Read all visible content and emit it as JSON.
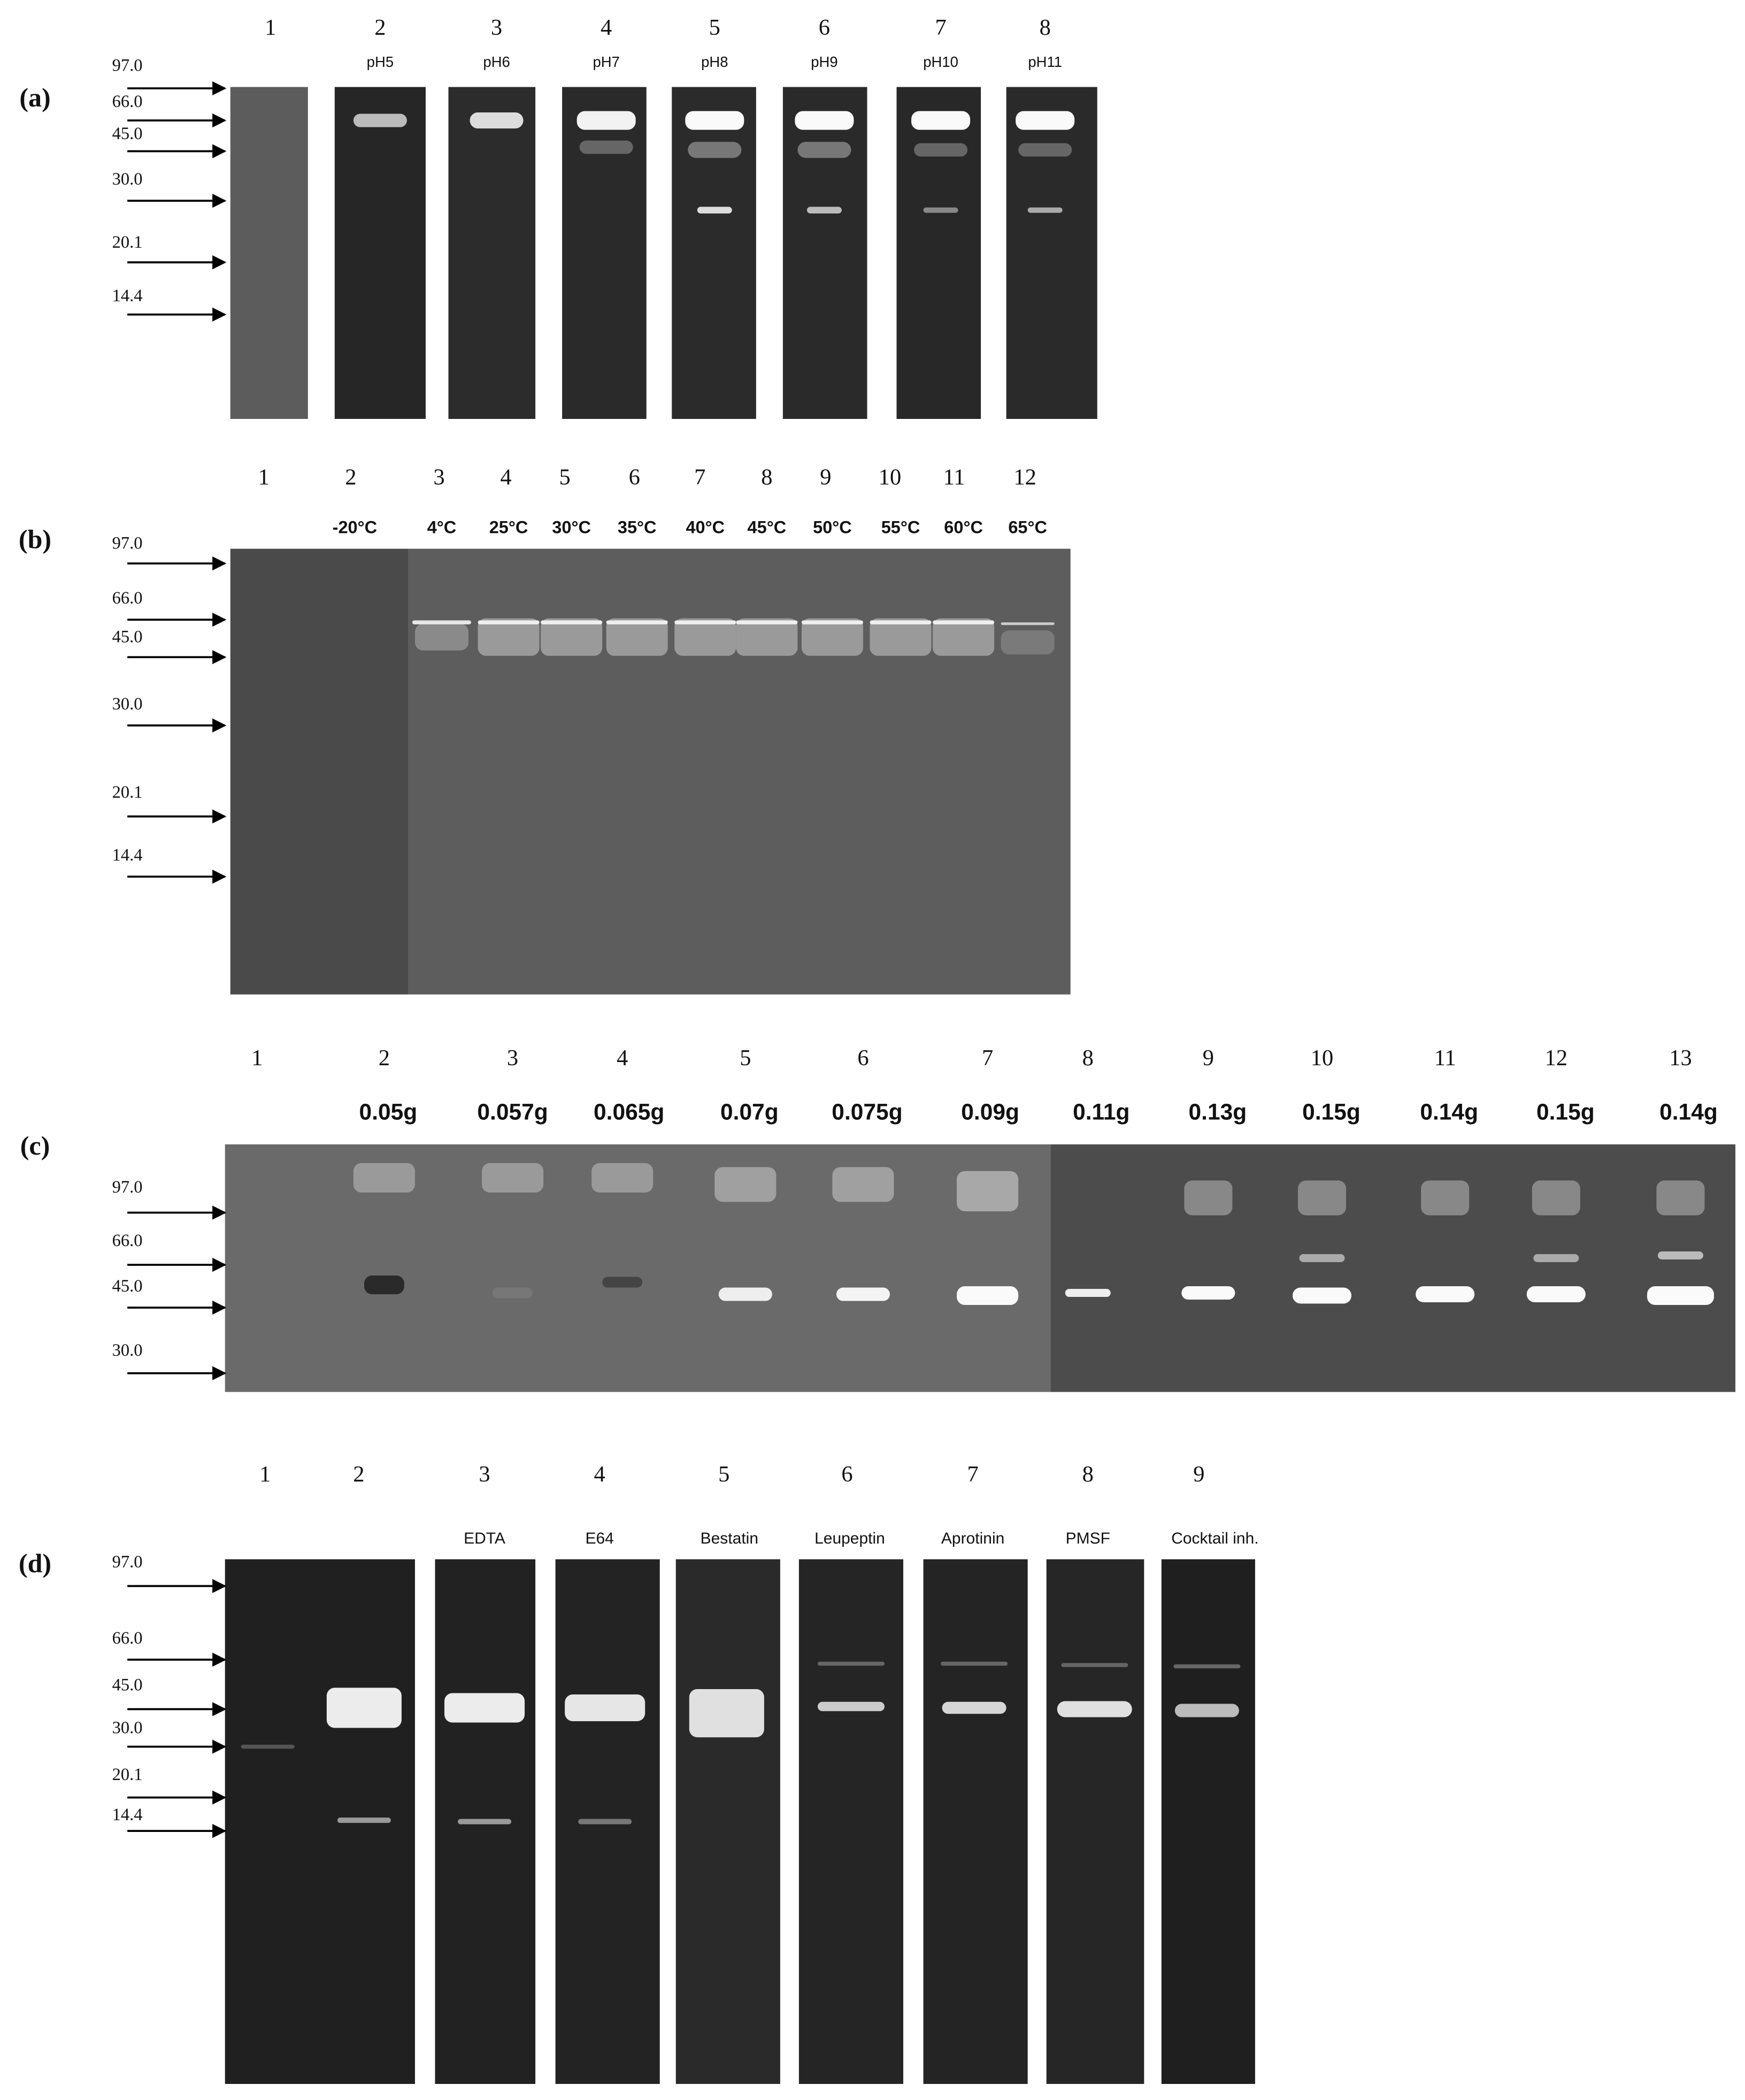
{
  "panels": [
    {
      "label": "(a)",
      "markers": [
        "97.0",
        "66.0",
        "45.0",
        "30.0",
        "20.1",
        "14.4"
      ],
      "lanes": [
        {
          "number": 1
        },
        {
          "number": 2,
          "label": "pH5"
        },
        {
          "number": 3,
          "label": "pH6"
        },
        {
          "number": 4,
          "label": "pH7"
        },
        {
          "number": 5,
          "label": "pH8"
        },
        {
          "number": 6,
          "label": "pH9"
        },
        {
          "number": 7,
          "label": "pH10"
        },
        {
          "number": 8,
          "label": "pH11"
        }
      ]
    },
    {
      "label": "(b)",
      "markers": [
        "97.0",
        "66.0",
        "45.0",
        "30.0",
        "20.1",
        "14.4"
      ],
      "lanes": [
        {
          "number": 1
        },
        {
          "number": 2,
          "label": "-20°C"
        },
        {
          "number": 3,
          "label": "4°C"
        },
        {
          "number": 4,
          "label": "25°C"
        },
        {
          "number": 5,
          "label": "30°C"
        },
        {
          "number": 6,
          "label": "35°C"
        },
        {
          "number": 7,
          "label": "40°C"
        },
        {
          "number": 8,
          "label": "45°C"
        },
        {
          "number": 9,
          "label": "50°C"
        },
        {
          "number": 10,
          "label": "55°C"
        },
        {
          "number": 11,
          "label": "60°C"
        },
        {
          "number": 12,
          "label": "65°C"
        }
      ]
    },
    {
      "label": "(c)",
      "markers": [
        "97.0",
        "66.0",
        "45.0",
        "30.0"
      ],
      "lanes": [
        {
          "number": 1
        },
        {
          "number": 2,
          "label": "0.05g"
        },
        {
          "number": 3,
          "label": "0.057g"
        },
        {
          "number": 4,
          "label": "0.065g"
        },
        {
          "number": 5,
          "label": "0.07g"
        },
        {
          "number": 6,
          "label": "0.075g"
        },
        {
          "number": 7,
          "label": "0.09g"
        },
        {
          "number": 8,
          "label": "0.11g"
        },
        {
          "number": 9,
          "label": "0.13g"
        },
        {
          "number": 10,
          "label": "0.15g"
        },
        {
          "number": 11,
          "label": "0.14g"
        },
        {
          "number": 12,
          "label": "0.15g"
        },
        {
          "number": 13,
          "label": "0.14g"
        }
      ]
    },
    {
      "label": "(d)",
      "markers": [
        "97.0",
        "66.0",
        "45.0",
        "30.0",
        "20.1",
        "14.4"
      ],
      "lanes": [
        {
          "number": 1
        },
        {
          "number": 2
        },
        {
          "number": 3,
          "label": "EDTA"
        },
        {
          "number": 4,
          "label": "E64"
        },
        {
          "number": 5,
          "label": "Bestatin"
        },
        {
          "number": 6,
          "label": "Leupeptin"
        },
        {
          "number": 7,
          "label": "Aprotinin"
        },
        {
          "number": 8,
          "label": "PMSF"
        },
        {
          "number": 9,
          "label": "Cocktail inh."
        }
      ]
    }
  ]
}
